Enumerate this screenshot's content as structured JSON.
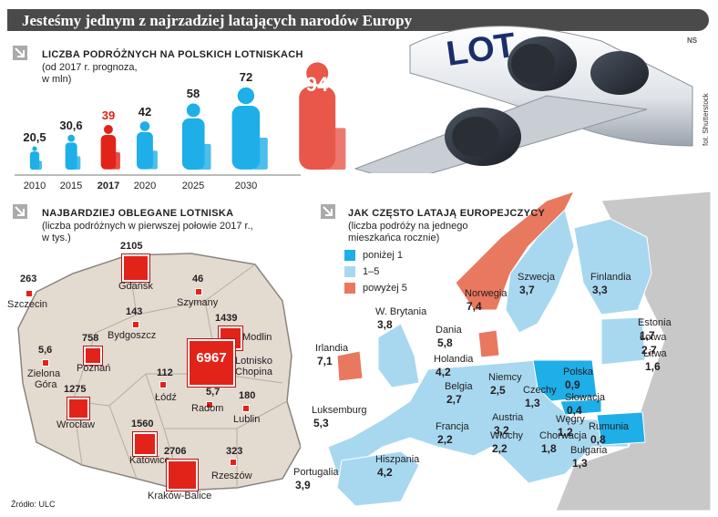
{
  "header": {
    "title": "Jesteśmy jednym z najrzadziej latających narodów Europy",
    "agency": "NS",
    "photo_credit": "fot. Shutterstock"
  },
  "passengers": {
    "title": "LICZBA PODRÓŻNYCH NA POLSKICH LOTNISKACH",
    "subtitle_line1": "(od 2017 r. prognoza,",
    "subtitle_line2": "w mln)",
    "bars": [
      {
        "year": "2010",
        "value": "20,5"
      },
      {
        "year": "2015",
        "value": "30,6"
      },
      {
        "year": "2017",
        "value": "39"
      },
      {
        "year": "2020",
        "value": "42"
      },
      {
        "year": "2025",
        "value": "58"
      },
      {
        "year": "2030",
        "value": "72"
      },
      {
        "year": "2035",
        "value": "94"
      }
    ]
  },
  "chart_data": {
    "type": "bar",
    "categories": [
      "2010",
      "2015",
      "2017",
      "2020",
      "2025",
      "2030",
      "2035"
    ],
    "values": [
      20.5,
      30.6,
      39,
      42,
      58,
      72,
      94
    ],
    "title": "LICZBA PODRÓŻNYCH NA POLSKICH LOTNISKACH",
    "ylabel": "",
    "xlabel": "",
    "highlight": {
      "2017": "#e2231a",
      "2035": "#e8574a"
    },
    "bar_color": "#1eaee8"
  },
  "airports": {
    "title": "NAJBARDZIEJ OBLEGANE LOTNISKA",
    "subtitle_line1": "(liczba podróżnych w pierwszej połowie 2017 r.,",
    "subtitle_line2": "w tys.)",
    "items": [
      {
        "name": "Szczecin",
        "value": "263"
      },
      {
        "name": "Gdańsk",
        "value": "2105"
      },
      {
        "name": "Szymany",
        "value": "46"
      },
      {
        "name": "Bydgoszcz",
        "value": "143"
      },
      {
        "name": "Modlin",
        "value": "1439"
      },
      {
        "name": "Zielona Góra",
        "name_line1": "Zielona",
        "name_line2": "Góra",
        "value": "5,6"
      },
      {
        "name": "Poznań",
        "value": "758"
      },
      {
        "name": "Lotnisko Chopina",
        "name_line1": "Lotnisko",
        "name_line2": "Chopina",
        "value": "6967"
      },
      {
        "name": "Łódź",
        "value": "112"
      },
      {
        "name": "Radom",
        "value": "5,7"
      },
      {
        "name": "Lublin",
        "value": "180"
      },
      {
        "name": "Wrocław",
        "value": "1275"
      },
      {
        "name": "Katowice",
        "value": "1560"
      },
      {
        "name": "Rzeszów",
        "value": "323"
      },
      {
        "name": "Kraków-Balice",
        "value": "2706"
      }
    ],
    "source": "Źródło: ULC"
  },
  "europe": {
    "title": "JAK CZĘSTO LATAJĄ EUROPEJCZYCY",
    "subtitle_line1": "(liczba podróży na jednego",
    "subtitle_line2": "mieszkańca rocznie)",
    "legend": [
      {
        "label": "poniżej 1",
        "color": "#1eaee8"
      },
      {
        "label": "1–5",
        "color": "#a8d8f0"
      },
      {
        "label": "powyżej 5",
        "color": "#e8785e"
      }
    ],
    "countries": [
      {
        "name": "Szwecja",
        "value": "3,7"
      },
      {
        "name": "Finlandia",
        "value": "3,3"
      },
      {
        "name": "Norwegia",
        "value": "7,4"
      },
      {
        "name": "W. Brytania",
        "value": "3,8"
      },
      {
        "name": "Dania",
        "value": "5,8"
      },
      {
        "name": "Estonia",
        "value": "1,7"
      },
      {
        "name": "Łotwa",
        "value": "2,7"
      },
      {
        "name": "Litwa",
        "value": "1,6"
      },
      {
        "name": "Irlandia",
        "value": "7,1"
      },
      {
        "name": "Holandia",
        "value": "4,2"
      },
      {
        "name": "Niemcy",
        "value": "2,5"
      },
      {
        "name": "Polska",
        "value": "0,9"
      },
      {
        "name": "Belgia",
        "value": "2,7"
      },
      {
        "name": "Czechy",
        "value": "1,3"
      },
      {
        "name": "Słowacja",
        "value": "0,4"
      },
      {
        "name": "Luksemburg",
        "value": "5,3"
      },
      {
        "name": "Austria",
        "value": "3,2"
      },
      {
        "name": "Węgry",
        "value": "1,2"
      },
      {
        "name": "Rumunia",
        "value": "0,8"
      },
      {
        "name": "Francja",
        "value": "2,2"
      },
      {
        "name": "Włochy",
        "value": "2,2"
      },
      {
        "name": "Chorwacja",
        "value": "1,8"
      },
      {
        "name": "Bułgaria",
        "value": "1,3"
      },
      {
        "name": "Hiszpania",
        "value": "4,2"
      },
      {
        "name": "Portugalia",
        "value": "3,9"
      }
    ]
  }
}
